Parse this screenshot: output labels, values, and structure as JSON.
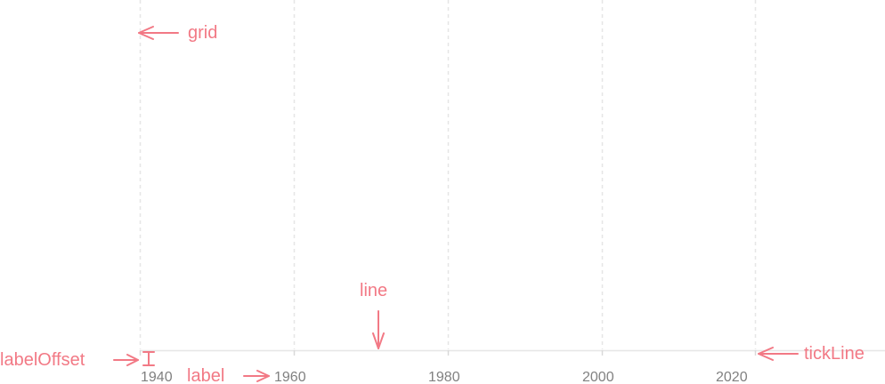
{
  "axis": {
    "ticks": [
      "1940",
      "1960",
      "1980",
      "2000",
      "2020"
    ]
  },
  "annotations": {
    "grid": "grid",
    "line": "line",
    "tick_line": "tickLine",
    "label": "label",
    "label_offset": "labelOffset"
  },
  "colors": {
    "annotation": "#f27985",
    "axis_line": "#e6e6e6",
    "grid_line": "#e6e6e6",
    "tick_label": "#808080"
  }
}
